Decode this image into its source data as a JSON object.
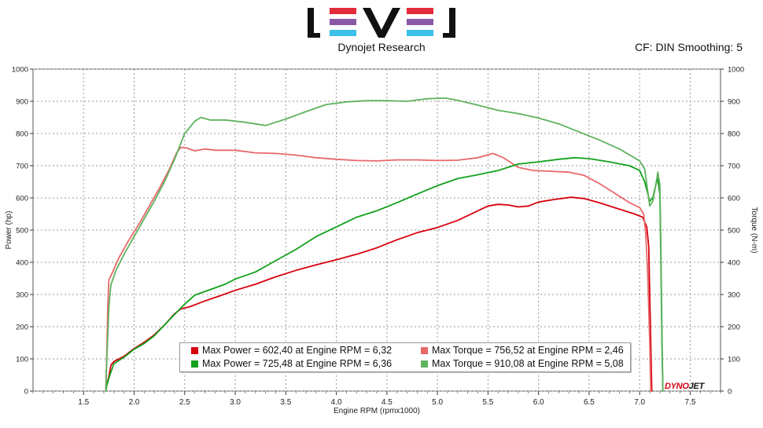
{
  "header": {
    "logo_text": "LEVEL",
    "company": "Dynojet Research",
    "correction": "CF: DIN Smoothing: 5"
  },
  "brand": {
    "part1": "DYNO",
    "part2": "JET"
  },
  "legend": {
    "items": [
      {
        "text": "Max Power = 602,40 at Engine RPM = 6,32",
        "color": "#d8000f"
      },
      {
        "text": "Max Torque = 756,52 at Engine RPM = 2,46",
        "color": "#e8686a"
      },
      {
        "text": "Max Power = 725,48 at Engine RPM = 6,36",
        "color": "#11a11b"
      },
      {
        "text": "Max Torque = 910,08 at Engine RPM = 5,08",
        "color": "#5fb25f"
      }
    ]
  },
  "colors": {
    "logo_red": "#e42b3a",
    "logo_purple": "#8a5aa8",
    "logo_cyan": "#3cc0e8",
    "logo_black": "#111111"
  },
  "chart_data": {
    "type": "line",
    "xlabel": "Engine RPM (rpmx1000)",
    "ylabel": "Power (hp)",
    "ylabel_right": "Torque (N-m)",
    "xlim": [
      1.0,
      7.8
    ],
    "ylim": [
      0,
      1000
    ],
    "y2lim": [
      0,
      1000
    ],
    "xticks": [
      "1.5",
      "2.0",
      "2.5",
      "3.0",
      "3.5",
      "4.0",
      "4.5",
      "5.0",
      "5.5",
      "6.0",
      "6.5",
      "7.0",
      "7.5"
    ],
    "xtick_values": [
      1.5,
      2.0,
      2.5,
      3.0,
      3.5,
      4.0,
      4.5,
      5.0,
      5.5,
      6.0,
      6.5,
      7.0,
      7.5
    ],
    "yticks": [
      "0",
      "100",
      "200",
      "300",
      "400",
      "500",
      "600",
      "700",
      "800",
      "900",
      "1000"
    ],
    "ytick_values": [
      0,
      100,
      200,
      300,
      400,
      500,
      600,
      700,
      800,
      900,
      1000
    ],
    "grid": true,
    "legend_position": "bottom-center",
    "series": [
      {
        "color": "#d8000f",
        "points": [
          [
            1.72,
            0
          ],
          [
            1.73,
            20
          ],
          [
            1.75,
            45
          ],
          [
            1.77,
            80
          ],
          [
            1.8,
            92
          ],
          [
            1.9,
            108
          ],
          [
            2.0,
            132
          ],
          [
            2.1,
            152
          ],
          [
            2.2,
            175
          ],
          [
            2.3,
            205
          ],
          [
            2.4,
            240
          ],
          [
            2.46,
            255
          ],
          [
            2.55,
            262
          ],
          [
            2.7,
            280
          ],
          [
            2.85,
            296
          ],
          [
            3.0,
            313
          ],
          [
            3.2,
            332
          ],
          [
            3.4,
            355
          ],
          [
            3.6,
            375
          ],
          [
            3.8,
            392
          ],
          [
            4.0,
            408
          ],
          [
            4.2,
            425
          ],
          [
            4.4,
            445
          ],
          [
            4.6,
            470
          ],
          [
            4.8,
            492
          ],
          [
            5.0,
            508
          ],
          [
            5.2,
            530
          ],
          [
            5.4,
            560
          ],
          [
            5.5,
            575
          ],
          [
            5.6,
            580
          ],
          [
            5.7,
            578
          ],
          [
            5.8,
            572
          ],
          [
            5.9,
            575
          ],
          [
            6.0,
            587
          ],
          [
            6.15,
            595
          ],
          [
            6.32,
            602
          ],
          [
            6.45,
            598
          ],
          [
            6.6,
            585
          ],
          [
            6.8,
            565
          ],
          [
            6.95,
            550
          ],
          [
            7.03,
            540
          ],
          [
            7.07,
            510
          ],
          [
            7.09,
            450
          ],
          [
            7.1,
            300
          ],
          [
            7.11,
            150
          ],
          [
            7.12,
            0
          ]
        ]
      },
      {
        "color": "#e8686a",
        "points": [
          [
            1.72,
            0
          ],
          [
            1.73,
            120
          ],
          [
            1.74,
            270
          ],
          [
            1.75,
            345
          ],
          [
            1.78,
            365
          ],
          [
            1.85,
            415
          ],
          [
            1.95,
            470
          ],
          [
            2.05,
            520
          ],
          [
            2.15,
            575
          ],
          [
            2.25,
            630
          ],
          [
            2.35,
            690
          ],
          [
            2.42,
            740
          ],
          [
            2.46,
            757
          ],
          [
            2.52,
            755
          ],
          [
            2.6,
            746
          ],
          [
            2.7,
            752
          ],
          [
            2.8,
            748
          ],
          [
            3.0,
            748
          ],
          [
            3.2,
            740
          ],
          [
            3.4,
            738
          ],
          [
            3.6,
            733
          ],
          [
            3.8,
            725
          ],
          [
            4.0,
            720
          ],
          [
            4.2,
            716
          ],
          [
            4.4,
            715
          ],
          [
            4.6,
            718
          ],
          [
            4.8,
            718
          ],
          [
            5.0,
            716
          ],
          [
            5.2,
            717
          ],
          [
            5.4,
            725
          ],
          [
            5.55,
            738
          ],
          [
            5.65,
            725
          ],
          [
            5.8,
            695
          ],
          [
            5.95,
            685
          ],
          [
            6.1,
            683
          ],
          [
            6.3,
            680
          ],
          [
            6.45,
            670
          ],
          [
            6.6,
            645
          ],
          [
            6.75,
            615
          ],
          [
            6.9,
            585
          ],
          [
            7.0,
            570
          ],
          [
            7.04,
            550
          ],
          [
            7.06,
            490
          ],
          [
            7.08,
            360
          ],
          [
            7.1,
            150
          ],
          [
            7.11,
            0
          ]
        ]
      },
      {
        "color": "#11a11b",
        "points": [
          [
            1.72,
            0
          ],
          [
            1.73,
            18
          ],
          [
            1.76,
            50
          ],
          [
            1.8,
            85
          ],
          [
            1.9,
            105
          ],
          [
            2.0,
            130
          ],
          [
            2.1,
            148
          ],
          [
            2.2,
            172
          ],
          [
            2.3,
            205
          ],
          [
            2.4,
            238
          ],
          [
            2.5,
            270
          ],
          [
            2.6,
            298
          ],
          [
            2.75,
            315
          ],
          [
            2.9,
            332
          ],
          [
            3.0,
            348
          ],
          [
            3.2,
            370
          ],
          [
            3.4,
            405
          ],
          [
            3.6,
            440
          ],
          [
            3.8,
            480
          ],
          [
            4.0,
            510
          ],
          [
            4.2,
            540
          ],
          [
            4.4,
            560
          ],
          [
            4.6,
            585
          ],
          [
            4.8,
            612
          ],
          [
            5.0,
            638
          ],
          [
            5.2,
            660
          ],
          [
            5.4,
            672
          ],
          [
            5.6,
            685
          ],
          [
            5.8,
            705
          ],
          [
            6.0,
            712
          ],
          [
            6.2,
            720
          ],
          [
            6.36,
            725
          ],
          [
            6.5,
            722
          ],
          [
            6.7,
            712
          ],
          [
            6.9,
            700
          ],
          [
            7.0,
            685
          ],
          [
            7.05,
            650
          ],
          [
            7.1,
            590
          ],
          [
            7.13,
            600
          ],
          [
            7.16,
            640
          ],
          [
            7.18,
            660
          ],
          [
            7.2,
            610
          ],
          [
            7.21,
            400
          ],
          [
            7.22,
            150
          ],
          [
            7.23,
            0
          ]
        ]
      },
      {
        "color": "#5fb25f",
        "points": [
          [
            1.72,
            0
          ],
          [
            1.73,
            100
          ],
          [
            1.75,
            260
          ],
          [
            1.77,
            330
          ],
          [
            1.82,
            375
          ],
          [
            1.9,
            425
          ],
          [
            2.0,
            480
          ],
          [
            2.1,
            535
          ],
          [
            2.2,
            590
          ],
          [
            2.3,
            650
          ],
          [
            2.4,
            720
          ],
          [
            2.5,
            800
          ],
          [
            2.6,
            838
          ],
          [
            2.66,
            850
          ],
          [
            2.75,
            842
          ],
          [
            2.9,
            842
          ],
          [
            3.1,
            835
          ],
          [
            3.3,
            825
          ],
          [
            3.5,
            845
          ],
          [
            3.7,
            868
          ],
          [
            3.9,
            890
          ],
          [
            4.1,
            898
          ],
          [
            4.3,
            902
          ],
          [
            4.5,
            902
          ],
          [
            4.7,
            900
          ],
          [
            4.9,
            908
          ],
          [
            5.08,
            910
          ],
          [
            5.2,
            903
          ],
          [
            5.4,
            888
          ],
          [
            5.6,
            872
          ],
          [
            5.8,
            862
          ],
          [
            6.0,
            848
          ],
          [
            6.2,
            830
          ],
          [
            6.4,
            805
          ],
          [
            6.6,
            780
          ],
          [
            6.8,
            752
          ],
          [
            7.0,
            715
          ],
          [
            7.05,
            690
          ],
          [
            7.1,
            575
          ],
          [
            7.13,
            590
          ],
          [
            7.16,
            640
          ],
          [
            7.18,
            680
          ],
          [
            7.2,
            640
          ],
          [
            7.21,
            450
          ],
          [
            7.22,
            200
          ],
          [
            7.23,
            0
          ]
        ]
      }
    ]
  }
}
